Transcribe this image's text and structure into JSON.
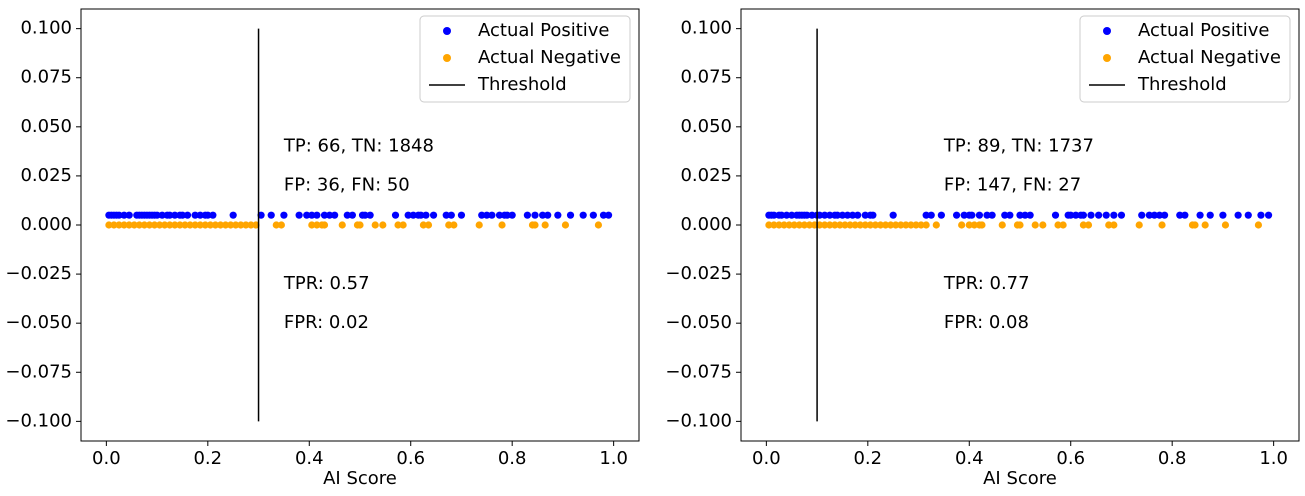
{
  "chart_data": [
    {
      "type": "scatter",
      "xlabel": "AI Score",
      "xlim": [
        -0.05,
        1.05
      ],
      "ylim": [
        -0.11,
        0.11
      ],
      "xticks": [
        0.0,
        0.2,
        0.4,
        0.6,
        0.8,
        1.0
      ],
      "xtick_labels": [
        "0.0",
        "0.2",
        "0.4",
        "0.6",
        "0.8",
        "1.0"
      ],
      "yticks": [
        0.1,
        0.075,
        0.05,
        0.025,
        0.0,
        -0.025,
        -0.05,
        -0.075,
        -0.1
      ],
      "ytick_labels": [
        "0.100",
        "0.075",
        "0.050",
        "0.025",
        "0.000",
        "−0.025",
        "−0.050",
        "−0.075",
        "−0.100"
      ],
      "legend_position": "top-right",
      "legend": [
        "Actual Positive",
        "Actual Negative",
        "Threshold"
      ],
      "threshold": 0.3,
      "threshold_ylim": [
        -0.1,
        0.1
      ],
      "annotations": [
        {
          "text": "TP: 66, TN: 1848",
          "x": 0.35,
          "y": 0.04
        },
        {
          "text": "FP: 36, FN: 50",
          "x": 0.35,
          "y": 0.02
        },
        {
          "text": "TPR: 0.57",
          "x": 0.35,
          "y": -0.03
        },
        {
          "text": "FPR: 0.02",
          "x": 0.35,
          "y": -0.05
        }
      ],
      "series": [
        {
          "name": "Actual Positive",
          "color": "#0000ff",
          "y": 0.005,
          "x": [
            0.005,
            0.01,
            0.015,
            0.02,
            0.025,
            0.035,
            0.045,
            0.06,
            0.065,
            0.07,
            0.075,
            0.08,
            0.085,
            0.09,
            0.095,
            0.1,
            0.11,
            0.12,
            0.125,
            0.135,
            0.145,
            0.15,
            0.16,
            0.175,
            0.185,
            0.195,
            0.2,
            0.21,
            0.25,
            0.305,
            0.325,
            0.35,
            0.38,
            0.395,
            0.405,
            0.415,
            0.43,
            0.44,
            0.45,
            0.475,
            0.485,
            0.505,
            0.51,
            0.52,
            0.57,
            0.595,
            0.605,
            0.615,
            0.62,
            0.63,
            0.645,
            0.67,
            0.68,
            0.7,
            0.74,
            0.75,
            0.76,
            0.775,
            0.785,
            0.79,
            0.8,
            0.83,
            0.845,
            0.86,
            0.87,
            0.89,
            0.915,
            0.94,
            0.96,
            0.98,
            0.99
          ]
        },
        {
          "name": "Actual Negative",
          "color": "#ffa500",
          "y": 0.0,
          "x": [
            0.005,
            0.015,
            0.025,
            0.035,
            0.045,
            0.055,
            0.065,
            0.075,
            0.085,
            0.095,
            0.105,
            0.115,
            0.125,
            0.135,
            0.145,
            0.155,
            0.165,
            0.175,
            0.185,
            0.195,
            0.205,
            0.215,
            0.225,
            0.235,
            0.245,
            0.255,
            0.265,
            0.275,
            0.285,
            0.295,
            0.335,
            0.345,
            0.405,
            0.415,
            0.425,
            0.43,
            0.465,
            0.495,
            0.5,
            0.53,
            0.545,
            0.575,
            0.585,
            0.625,
            0.635,
            0.675,
            0.685,
            0.735,
            0.78,
            0.84,
            0.845,
            0.865,
            0.905,
            0.97
          ]
        }
      ]
    },
    {
      "type": "scatter",
      "xlabel": "AI Score",
      "xlim": [
        -0.05,
        1.05
      ],
      "ylim": [
        -0.11,
        0.11
      ],
      "xticks": [
        0.0,
        0.2,
        0.4,
        0.6,
        0.8,
        1.0
      ],
      "xtick_labels": [
        "0.0",
        "0.2",
        "0.4",
        "0.6",
        "0.8",
        "1.0"
      ],
      "yticks": [
        0.1,
        0.075,
        0.05,
        0.025,
        0.0,
        -0.025,
        -0.05,
        -0.075,
        -0.1
      ],
      "ytick_labels": [
        "0.100",
        "0.075",
        "0.050",
        "0.025",
        "0.000",
        "−0.025",
        "−0.050",
        "−0.075",
        "−0.100"
      ],
      "legend_position": "top-right",
      "legend": [
        "Actual Positive",
        "Actual Negative",
        "Threshold"
      ],
      "threshold": 0.1,
      "threshold_ylim": [
        -0.1,
        0.1
      ],
      "annotations": [
        {
          "text": "TP: 89, TN: 1737",
          "x": 0.35,
          "y": 0.04
        },
        {
          "text": "FP: 147, FN: 27",
          "x": 0.35,
          "y": 0.02
        },
        {
          "text": "TPR: 0.77",
          "x": 0.35,
          "y": -0.03
        },
        {
          "text": "FPR: 0.08",
          "x": 0.35,
          "y": -0.05
        }
      ],
      "series": [
        {
          "name": "Actual Positive",
          "color": "#0000ff",
          "y": 0.005,
          "x": [
            0.005,
            0.01,
            0.015,
            0.025,
            0.03,
            0.04,
            0.05,
            0.06,
            0.065,
            0.07,
            0.075,
            0.08,
            0.09,
            0.1,
            0.105,
            0.115,
            0.125,
            0.135,
            0.14,
            0.15,
            0.16,
            0.17,
            0.18,
            0.195,
            0.205,
            0.21,
            0.25,
            0.315,
            0.325,
            0.345,
            0.375,
            0.39,
            0.4,
            0.405,
            0.42,
            0.435,
            0.445,
            0.47,
            0.48,
            0.5,
            0.51,
            0.52,
            0.57,
            0.595,
            0.6,
            0.61,
            0.62,
            0.625,
            0.64,
            0.655,
            0.67,
            0.685,
            0.7,
            0.74,
            0.755,
            0.765,
            0.775,
            0.785,
            0.815,
            0.825,
            0.855,
            0.875,
            0.9,
            0.93,
            0.95,
            0.975,
            0.99
          ]
        },
        {
          "name": "Actual Negative",
          "color": "#ffa500",
          "y": 0.0,
          "x": [
            0.005,
            0.015,
            0.025,
            0.035,
            0.045,
            0.055,
            0.065,
            0.075,
            0.085,
            0.095,
            0.105,
            0.115,
            0.125,
            0.135,
            0.145,
            0.155,
            0.165,
            0.175,
            0.185,
            0.195,
            0.205,
            0.215,
            0.225,
            0.235,
            0.245,
            0.255,
            0.265,
            0.275,
            0.285,
            0.295,
            0.305,
            0.315,
            0.335,
            0.385,
            0.4,
            0.41,
            0.42,
            0.425,
            0.465,
            0.495,
            0.5,
            0.53,
            0.545,
            0.575,
            0.585,
            0.625,
            0.635,
            0.675,
            0.685,
            0.735,
            0.78,
            0.84,
            0.845,
            0.865,
            0.905,
            0.97
          ]
        }
      ]
    }
  ]
}
